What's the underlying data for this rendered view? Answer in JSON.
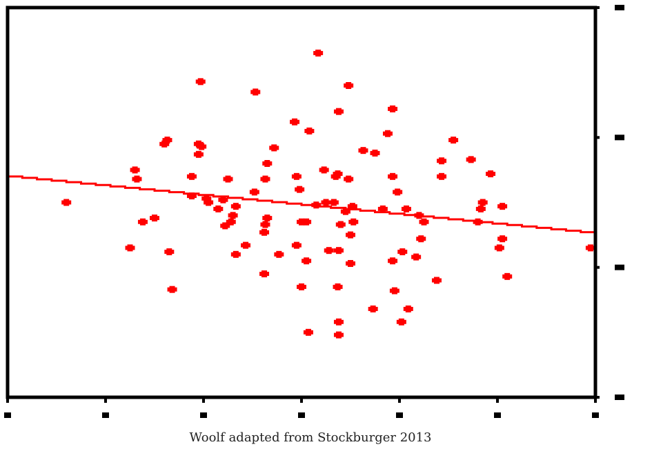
{
  "caption": "Woolf adapted from Stockburger 2013",
  "chart_data": {
    "type": "scatter",
    "title": "",
    "xlabel": "",
    "ylabel": "",
    "xlim": [
      0,
      60
    ],
    "ylim": [
      0,
      30
    ],
    "grid": false,
    "legend": "none",
    "point_color": "#ff0000",
    "line_color": "#ff0000",
    "axis_color": "#000000",
    "trend_line": {
      "x": [
        0,
        60
      ],
      "y": [
        17.0,
        12.6
      ]
    },
    "points": [
      {
        "x": 6.0,
        "y": 15.0
      },
      {
        "x": 12.5,
        "y": 11.5
      },
      {
        "x": 13.0,
        "y": 17.5
      },
      {
        "x": 13.2,
        "y": 16.8
      },
      {
        "x": 13.8,
        "y": 13.5
      },
      {
        "x": 15.0,
        "y": 13.8
      },
      {
        "x": 16.0,
        "y": 19.5
      },
      {
        "x": 16.3,
        "y": 19.8
      },
      {
        "x": 16.5,
        "y": 11.2
      },
      {
        "x": 16.8,
        "y": 8.3
      },
      {
        "x": 18.8,
        "y": 17.0
      },
      {
        "x": 18.8,
        "y": 15.5
      },
      {
        "x": 19.5,
        "y": 19.5
      },
      {
        "x": 19.5,
        "y": 18.7
      },
      {
        "x": 19.8,
        "y": 19.3
      },
      {
        "x": 19.7,
        "y": 24.3
      },
      {
        "x": 20.3,
        "y": 15.3
      },
      {
        "x": 20.5,
        "y": 15.0
      },
      {
        "x": 21.5,
        "y": 14.5
      },
      {
        "x": 22.0,
        "y": 15.2
      },
      {
        "x": 22.2,
        "y": 13.2
      },
      {
        "x": 22.5,
        "y": 16.8
      },
      {
        "x": 22.8,
        "y": 13.5
      },
      {
        "x": 23.0,
        "y": 14.0
      },
      {
        "x": 23.3,
        "y": 11.0
      },
      {
        "x": 23.3,
        "y": 14.7
      },
      {
        "x": 24.3,
        "y": 11.7
      },
      {
        "x": 25.2,
        "y": 15.8
      },
      {
        "x": 25.3,
        "y": 23.5
      },
      {
        "x": 26.2,
        "y": 9.5
      },
      {
        "x": 26.2,
        "y": 12.7
      },
      {
        "x": 26.3,
        "y": 13.3
      },
      {
        "x": 26.5,
        "y": 13.8
      },
      {
        "x": 26.3,
        "y": 16.8
      },
      {
        "x": 26.5,
        "y": 18.0
      },
      {
        "x": 27.2,
        "y": 19.2
      },
      {
        "x": 27.7,
        "y": 11.0
      },
      {
        "x": 29.3,
        "y": 21.2
      },
      {
        "x": 29.5,
        "y": 11.7
      },
      {
        "x": 29.5,
        "y": 17.0
      },
      {
        "x": 29.8,
        "y": 16.0
      },
      {
        "x": 30.0,
        "y": 13.5
      },
      {
        "x": 30.0,
        "y": 8.5
      },
      {
        "x": 30.5,
        "y": 10.5
      },
      {
        "x": 30.8,
        "y": 20.5
      },
      {
        "x": 30.5,
        "y": 13.5
      },
      {
        "x": 30.7,
        "y": 5.0
      },
      {
        "x": 31.5,
        "y": 14.8
      },
      {
        "x": 31.7,
        "y": 26.5
      },
      {
        "x": 32.3,
        "y": 17.5
      },
      {
        "x": 32.5,
        "y": 15.0
      },
      {
        "x": 32.8,
        "y": 11.3
      },
      {
        "x": 33.3,
        "y": 15.0
      },
      {
        "x": 33.5,
        "y": 17.0
      },
      {
        "x": 33.8,
        "y": 11.3
      },
      {
        "x": 33.7,
        "y": 17.2
      },
      {
        "x": 33.7,
        "y": 8.5
      },
      {
        "x": 33.8,
        "y": 22.0
      },
      {
        "x": 34.0,
        "y": 13.3
      },
      {
        "x": 33.8,
        "y": 5.8
      },
      {
        "x": 33.8,
        "y": 4.8
      },
      {
        "x": 34.5,
        "y": 14.3
      },
      {
        "x": 34.8,
        "y": 16.8
      },
      {
        "x": 34.8,
        "y": 24.0
      },
      {
        "x": 35.0,
        "y": 12.5
      },
      {
        "x": 35.0,
        "y": 10.3
      },
      {
        "x": 35.2,
        "y": 14.7
      },
      {
        "x": 35.3,
        "y": 13.5
      },
      {
        "x": 36.3,
        "y": 19.0
      },
      {
        "x": 37.3,
        "y": 6.8
      },
      {
        "x": 37.5,
        "y": 18.8
      },
      {
        "x": 38.3,
        "y": 14.5
      },
      {
        "x": 38.8,
        "y": 20.3
      },
      {
        "x": 39.3,
        "y": 17.0
      },
      {
        "x": 39.3,
        "y": 22.2
      },
      {
        "x": 39.3,
        "y": 10.5
      },
      {
        "x": 39.5,
        "y": 8.2
      },
      {
        "x": 39.8,
        "y": 15.8
      },
      {
        "x": 40.2,
        "y": 5.8
      },
      {
        "x": 40.3,
        "y": 11.2
      },
      {
        "x": 40.7,
        "y": 14.5
      },
      {
        "x": 40.9,
        "y": 6.8
      },
      {
        "x": 41.7,
        "y": 10.8
      },
      {
        "x": 42.0,
        "y": 14.0
      },
      {
        "x": 42.2,
        "y": 12.2
      },
      {
        "x": 42.5,
        "y": 13.5
      },
      {
        "x": 43.8,
        "y": 9.0
      },
      {
        "x": 44.3,
        "y": 18.2
      },
      {
        "x": 44.3,
        "y": 17.0
      },
      {
        "x": 45.5,
        "y": 19.8
      },
      {
        "x": 47.3,
        "y": 18.3
      },
      {
        "x": 48.0,
        "y": 13.5
      },
      {
        "x": 48.3,
        "y": 14.5
      },
      {
        "x": 48.5,
        "y": 15.0
      },
      {
        "x": 49.3,
        "y": 17.2
      },
      {
        "x": 50.2,
        "y": 11.5
      },
      {
        "x": 50.5,
        "y": 12.2
      },
      {
        "x": 50.5,
        "y": 14.7
      },
      {
        "x": 51.0,
        "y": 9.3
      },
      {
        "x": 59.5,
        "y": 11.5
      }
    ]
  }
}
